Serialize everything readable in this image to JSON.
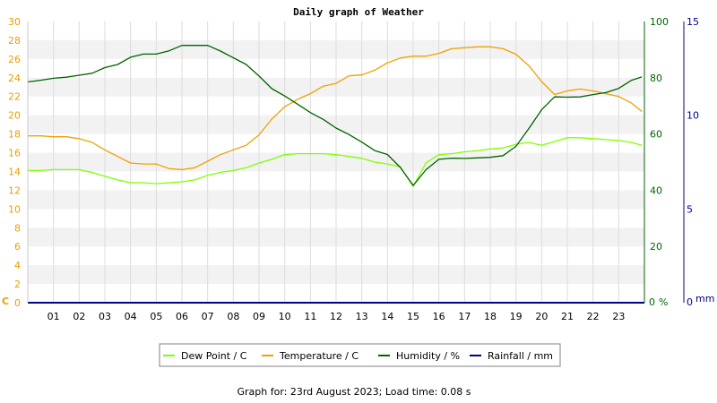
{
  "chart_data": {
    "type": "line",
    "title": "Daily graph of Weather",
    "x_ticks": [
      "01",
      "02",
      "03",
      "04",
      "05",
      "06",
      "07",
      "08",
      "09",
      "10",
      "11",
      "12",
      "13",
      "14",
      "15",
      "16",
      "17",
      "18",
      "19",
      "20",
      "21",
      "22",
      "23"
    ],
    "xlim": [
      0,
      24
    ],
    "axes": {
      "left": {
        "unit": "C",
        "color": "#e8a000",
        "ylim": [
          0,
          30
        ],
        "ticks": [
          0,
          2,
          4,
          6,
          8,
          10,
          12,
          14,
          16,
          18,
          20,
          22,
          24,
          26,
          28,
          30
        ]
      },
      "humidity": {
        "unit": "%",
        "color": "#006400",
        "ylim": [
          0,
          100
        ],
        "ticks": [
          0,
          20,
          40,
          60,
          80,
          100
        ]
      },
      "rain": {
        "unit": "mm",
        "color": "#00008b",
        "ylim": [
          0,
          15
        ],
        "ticks": [
          0,
          5,
          10,
          15
        ]
      }
    },
    "grid": true,
    "series": [
      {
        "name": "Dew Point / C",
        "axis": "left",
        "color": "#7fff00",
        "x": [
          0,
          0.5,
          1,
          1.5,
          2,
          2.5,
          3,
          3.5,
          4,
          4.5,
          5,
          5.5,
          6,
          6.5,
          7,
          7.5,
          8,
          8.5,
          9,
          9.5,
          10,
          10.5,
          11,
          11.5,
          12,
          12.5,
          13,
          13.5,
          14,
          14.5,
          15,
          15.5,
          16,
          16.5,
          17,
          17.5,
          18,
          18.5,
          19,
          19.5,
          20,
          20.5,
          21,
          21.5,
          22,
          22.5,
          23,
          23.5,
          23.9
        ],
        "y": [
          14.1,
          14.1,
          14.2,
          14.2,
          14.2,
          13.9,
          13.5,
          13.1,
          12.8,
          12.8,
          12.7,
          12.8,
          12.9,
          13.1,
          13.6,
          13.9,
          14.1,
          14.4,
          14.9,
          15.3,
          15.8,
          15.9,
          15.9,
          15.9,
          15.8,
          15.6,
          15.4,
          15.0,
          14.8,
          14.5,
          12.4,
          14.9,
          15.8,
          15.9,
          16.1,
          16.2,
          16.4,
          16.5,
          16.9,
          17.1,
          16.8,
          17.2,
          17.6,
          17.6,
          17.5,
          17.4,
          17.3,
          17.1,
          16.8
        ]
      },
      {
        "name": "Temperature / C",
        "axis": "left",
        "color": "#f0a000",
        "x": [
          0,
          0.5,
          1,
          1.5,
          2,
          2.5,
          3,
          3.5,
          4,
          4.5,
          5,
          5.5,
          6,
          6.5,
          7,
          7.5,
          8,
          8.5,
          9,
          9.5,
          10,
          10.5,
          11,
          11.5,
          12,
          12.5,
          13,
          13.5,
          14,
          14.5,
          15,
          15.5,
          16,
          16.5,
          17,
          17.5,
          18,
          18.5,
          19,
          19.5,
          20,
          20.5,
          21,
          21.5,
          22,
          22.5,
          23,
          23.5,
          23.9
        ],
        "y": [
          17.8,
          17.8,
          17.7,
          17.7,
          17.5,
          17.1,
          16.3,
          15.6,
          14.9,
          14.8,
          14.8,
          14.3,
          14.2,
          14.4,
          15.1,
          15.8,
          16.3,
          16.8,
          17.9,
          19.6,
          20.9,
          21.7,
          22.3,
          23.1,
          23.4,
          24.2,
          24.3,
          24.8,
          25.6,
          26.1,
          26.3,
          26.3,
          26.6,
          27.1,
          27.2,
          27.3,
          27.3,
          27.1,
          26.5,
          25.3,
          23.6,
          22.2,
          22.6,
          22.8,
          22.6,
          22.3,
          22.0,
          21.3,
          20.4
        ]
      },
      {
        "name": "Humidity / %",
        "axis": "humidity",
        "color": "#006400",
        "x": [
          0,
          0.5,
          1,
          1.5,
          2,
          2.5,
          3,
          3.5,
          4,
          4.5,
          5,
          5.5,
          6,
          6.5,
          7,
          7.5,
          8,
          8.5,
          9,
          9.5,
          10,
          10.5,
          11,
          11.5,
          12,
          12.5,
          13,
          13.5,
          14,
          14.5,
          15,
          15.5,
          16,
          16.5,
          17,
          17.5,
          18,
          18.5,
          19,
          19.5,
          20,
          20.5,
          21,
          21.5,
          22,
          22.5,
          23,
          23.5,
          23.9
        ],
        "y": [
          78.5,
          79.1,
          79.8,
          80.2,
          80.9,
          81.6,
          83.6,
          84.7,
          87.3,
          88.4,
          88.4,
          89.6,
          91.5,
          91.5,
          91.5,
          89.5,
          87.1,
          84.7,
          80.6,
          76.1,
          73.5,
          70.6,
          67.6,
          65.2,
          62.1,
          59.8,
          57.1,
          54.1,
          52.7,
          48.1,
          41.7,
          47.3,
          51.0,
          51.4,
          51.3,
          51.5,
          51.7,
          52.3,
          55.6,
          61.9,
          68.6,
          73.2,
          73.1,
          73.2,
          74.0,
          74.7,
          76.2,
          79.1,
          80.3
        ]
      },
      {
        "name": "Rainfall / mm",
        "axis": "rain",
        "color": "#00008b",
        "x": [
          0,
          24
        ],
        "y": [
          0,
          0
        ]
      }
    ],
    "legend": {
      "position": "bottom",
      "entries": [
        "Dew Point / C",
        "Temperature / C",
        "Humidity / %",
        "Rainfall / mm"
      ]
    }
  },
  "footer": {
    "text": "Graph for: 23rd August 2023; Load time: 0.08 s"
  }
}
